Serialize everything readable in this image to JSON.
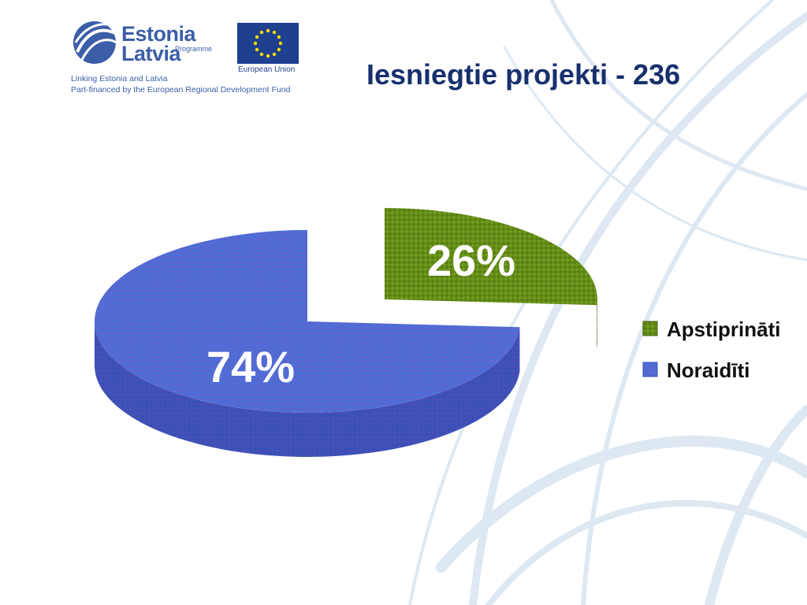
{
  "logo": {
    "line1": "Estonia",
    "line2": "Latvia",
    "sub": "Programme",
    "tagline1": "Linking Estonia and Latvia",
    "tagline2": "Part-financed by the European Regional Development Fund",
    "eu_caption": "European Union"
  },
  "colors": {
    "title": "#17306d",
    "approved": "#6f9a1c",
    "rejected": "#4b6fd8",
    "logo_blue": "#3c5ea8",
    "eu_flag": "#1f3f8f"
  },
  "chart_data": {
    "type": "pie",
    "title": "Iesniegtie projekti - 236",
    "style": "3d-exploded",
    "legend_position": "right",
    "slices": [
      {
        "name": "Apstiprināti",
        "value": 26,
        "label": "26%",
        "color": "#6f9a1c"
      },
      {
        "name": "Noraidīti",
        "value": 74,
        "label": "74%",
        "color": "#4b6fd8"
      }
    ]
  }
}
